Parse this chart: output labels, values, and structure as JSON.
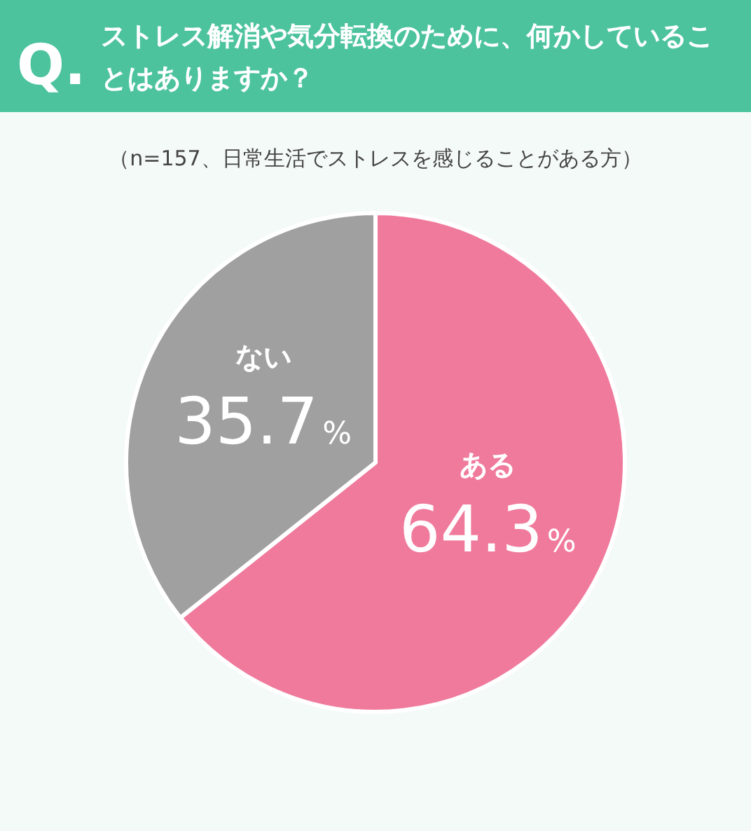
{
  "chart_data": {
    "type": "pie",
    "title": "ストレス解消や気分転換のために、何かしていることはありますか？",
    "subtitle": "（n=157、日常生活でストレスを感じることがある方）",
    "annotations": [
      "Q."
    ],
    "categories": [
      "ある",
      "ない"
    ],
    "values": [
      64.3,
      35.7
    ],
    "colors": [
      "#f07a9c",
      "#a0a0a0"
    ],
    "value_labels": [
      "64.3%",
      "35.7%"
    ]
  }
}
